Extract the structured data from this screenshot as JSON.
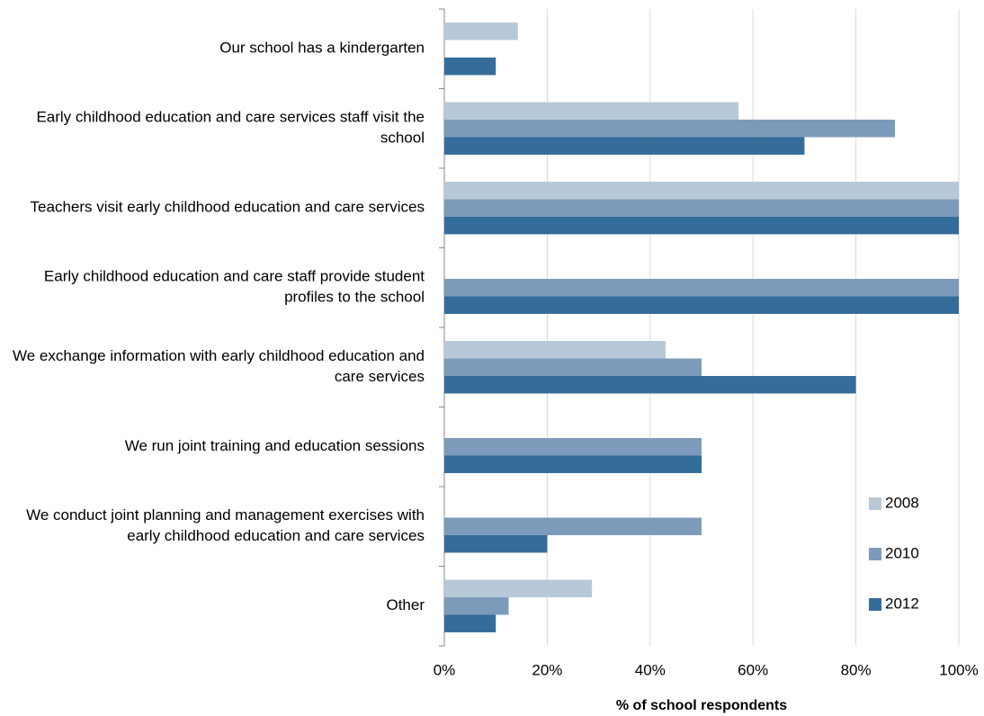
{
  "chart_data": {
    "type": "hbar",
    "categories": [
      "Our school has a kindergarten",
      "Early childhood education and care services staff visit the school",
      "Teachers visit early childhood education and care services",
      "Early childhood education and care staff provide student profiles to the school",
      "We exchange information with early childhood education and care services",
      "We run joint training and education sessions",
      "We conduct joint planning and management exercises with early childhood education and care services",
      "Other"
    ],
    "series": [
      {
        "name": "2008",
        "color": "#b7c9d8",
        "values": [
          14.3,
          57.2,
          100,
          null,
          43,
          null,
          null,
          28.7
        ]
      },
      {
        "name": "2010",
        "color": "#7c9bba",
        "values": [
          null,
          87.6,
          100,
          100,
          50,
          50,
          50,
          12.5
        ]
      },
      {
        "name": "2012",
        "color": "#346d99",
        "values": [
          10,
          70,
          100,
          100,
          80,
          50,
          20,
          10
        ]
      }
    ],
    "xlabel": "% of school respondents",
    "xlim": [
      0,
      100
    ],
    "xticks": [
      {
        "value": 0,
        "label": "0%"
      },
      {
        "value": 20,
        "label": "20%"
      },
      {
        "value": 40,
        "label": "40%"
      },
      {
        "value": 60,
        "label": "60%"
      },
      {
        "value": 80,
        "label": "80%"
      },
      {
        "value": 100,
        "label": "100%"
      }
    ],
    "grid": true,
    "legend": "right"
  }
}
